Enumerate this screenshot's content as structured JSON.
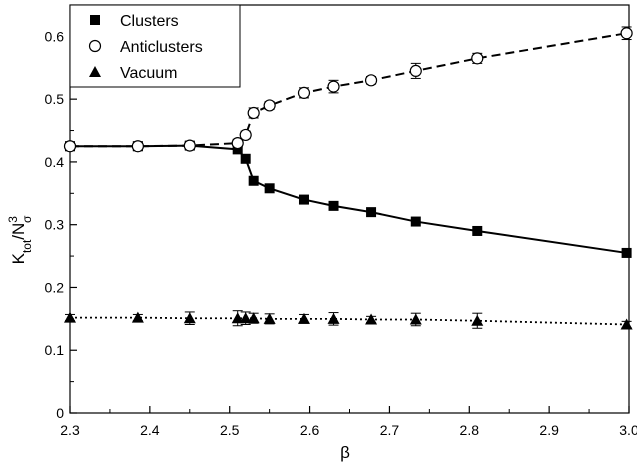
{
  "chart_data": {
    "type": "scatter",
    "xlabel": "β",
    "ylabel": {
      "main": "K",
      "sub": "tot",
      "sep": "/N",
      "sup": "3",
      "sub2": "σ"
    },
    "xlim": [
      2.3,
      3.0
    ],
    "ylim": [
      0,
      0.65
    ],
    "xticks": [
      "2.3",
      "2.4",
      "2.5",
      "2.6",
      "2.7",
      "2.8",
      "2.9",
      "3.0"
    ],
    "yticks": [
      "0",
      "0.1",
      "0.2",
      "0.3",
      "0.4",
      "0.5",
      "0.6"
    ],
    "grid": false,
    "legend_position": "top-left",
    "series": [
      {
        "name": "Clusters",
        "marker": "filled-square",
        "line_style": "solid",
        "color": "#000000",
        "points": [
          {
            "x": 2.3,
            "y": 0.425
          },
          {
            "x": 2.385,
            "y": 0.425
          },
          {
            "x": 2.45,
            "y": 0.426
          },
          {
            "x": 2.51,
            "y": 0.42
          },
          {
            "x": 2.52,
            "y": 0.405
          },
          {
            "x": 2.53,
            "y": 0.37
          },
          {
            "x": 2.55,
            "y": 0.358
          },
          {
            "x": 2.593,
            "y": 0.34
          },
          {
            "x": 2.63,
            "y": 0.33
          },
          {
            "x": 2.677,
            "y": 0.32
          },
          {
            "x": 2.733,
            "y": 0.305
          },
          {
            "x": 2.81,
            "y": 0.29
          },
          {
            "x": 2.997,
            "y": 0.255
          }
        ]
      },
      {
        "name": "Anticlusters",
        "marker": "open-circle",
        "line_style": "dashed",
        "color": "#000000",
        "points": [
          {
            "x": 2.3,
            "y": 0.425,
            "err": 0.007
          },
          {
            "x": 2.385,
            "y": 0.425,
            "err": 0.007
          },
          {
            "x": 2.45,
            "y": 0.426,
            "err": 0.006
          },
          {
            "x": 2.51,
            "y": 0.43,
            "err": 0.006
          },
          {
            "x": 2.52,
            "y": 0.443,
            "err": 0.006
          },
          {
            "x": 2.53,
            "y": 0.478,
            "err": 0.008
          },
          {
            "x": 2.55,
            "y": 0.49,
            "err": 0.006
          },
          {
            "x": 2.593,
            "y": 0.51,
            "err": 0.008
          },
          {
            "x": 2.63,
            "y": 0.52,
            "err": 0.01
          },
          {
            "x": 2.677,
            "y": 0.53,
            "err": 0.006
          },
          {
            "x": 2.733,
            "y": 0.545,
            "err": 0.012
          },
          {
            "x": 2.81,
            "y": 0.565,
            "err": 0.008
          },
          {
            "x": 2.997,
            "y": 0.605,
            "err": 0.01
          }
        ]
      },
      {
        "name": "Vacuum",
        "marker": "filled-triangle",
        "line_style": "dotted",
        "color": "#000000",
        "points": [
          {
            "x": 2.3,
            "y": 0.152,
            "err": 0.005
          },
          {
            "x": 2.385,
            "y": 0.152,
            "err": 0.005
          },
          {
            "x": 2.45,
            "y": 0.151,
            "err": 0.01
          },
          {
            "x": 2.51,
            "y": 0.151,
            "err": 0.012
          },
          {
            "x": 2.52,
            "y": 0.151,
            "err": 0.01
          },
          {
            "x": 2.53,
            "y": 0.151,
            "err": 0.008
          },
          {
            "x": 2.55,
            "y": 0.15,
            "err": 0.008
          },
          {
            "x": 2.593,
            "y": 0.15,
            "err": 0.007
          },
          {
            "x": 2.63,
            "y": 0.15,
            "err": 0.01
          },
          {
            "x": 2.677,
            "y": 0.149,
            "err": 0.005
          },
          {
            "x": 2.733,
            "y": 0.149,
            "err": 0.01
          },
          {
            "x": 2.81,
            "y": 0.147,
            "err": 0.012
          },
          {
            "x": 2.997,
            "y": 0.141,
            "err": 0.005
          }
        ]
      }
    ]
  }
}
